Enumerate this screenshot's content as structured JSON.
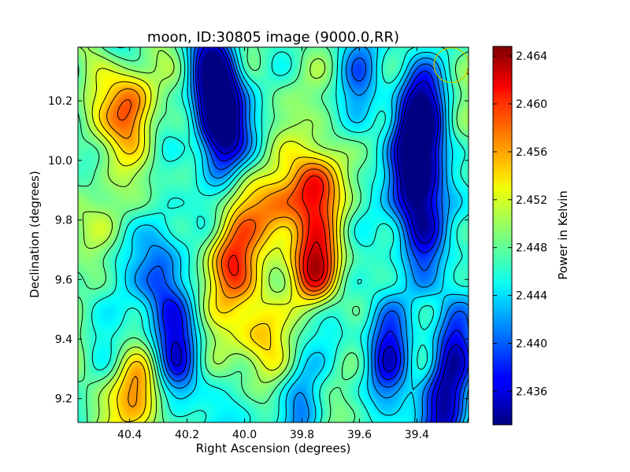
{
  "chart_data": {
    "type": "heatmap",
    "title": "moon, ID:30805 image (9000.0,RR)",
    "xlabel": "Right Ascension (degrees)",
    "ylabel": "Declination (degrees)",
    "xlim": [
      40.58,
      39.22
    ],
    "ylim": [
      9.12,
      10.38
    ],
    "x_ticks": [
      "40.4",
      "40.2",
      "40.0",
      "39.8",
      "39.6",
      "39.4"
    ],
    "x_tick_values": [
      40.4,
      40.2,
      40.0,
      39.8,
      39.6,
      39.4
    ],
    "y_ticks": [
      "9.2",
      "9.4",
      "9.6",
      "9.8",
      "10.0",
      "10.2"
    ],
    "y_tick_values": [
      9.2,
      9.4,
      9.6,
      9.8,
      10.0,
      10.2
    ],
    "colorbar": {
      "label": "Power in Kelvin",
      "range": [
        2.4332,
        2.4648
      ],
      "ticks": [
        "2.436",
        "2.440",
        "2.444",
        "2.448",
        "2.452",
        "2.456",
        "2.460",
        "2.464"
      ],
      "tick_values": [
        2.436,
        2.44,
        2.444,
        2.448,
        2.452,
        2.456,
        2.46,
        2.464
      ],
      "colormap": "jet"
    },
    "features": [
      {
        "ra": 39.75,
        "dec": 9.64,
        "value": 2.4645,
        "kind": "peak"
      },
      {
        "ra": 39.76,
        "dec": 9.9,
        "value": 2.46,
        "kind": "peak"
      },
      {
        "ra": 40.05,
        "dec": 9.65,
        "value": 2.457,
        "kind": "peak"
      },
      {
        "ra": 39.88,
        "dec": 9.82,
        "value": 2.456,
        "kind": "peak"
      },
      {
        "ra": 40.0,
        "dec": 9.87,
        "value": 2.453,
        "kind": "peak"
      },
      {
        "ra": 40.39,
        "dec": 10.2,
        "value": 2.455,
        "kind": "peak"
      },
      {
        "ra": 40.38,
        "dec": 9.22,
        "value": 2.456,
        "kind": "peak"
      },
      {
        "ra": 40.55,
        "dec": 10.15,
        "value": 2.452,
        "kind": "peak"
      },
      {
        "ra": 40.47,
        "dec": 9.8,
        "value": 2.451,
        "kind": "peak"
      },
      {
        "ra": 39.95,
        "dec": 9.42,
        "value": 2.454,
        "kind": "peak"
      },
      {
        "ra": 39.9,
        "dec": 9.3,
        "value": 2.45,
        "kind": "peak"
      },
      {
        "ra": 40.11,
        "dec": 10.27,
        "value": 2.434,
        "kind": "trough"
      },
      {
        "ra": 40.08,
        "dec": 10.12,
        "value": 2.437,
        "kind": "trough"
      },
      {
        "ra": 40.24,
        "dec": 9.35,
        "value": 2.438,
        "kind": "trough"
      },
      {
        "ra": 40.29,
        "dec": 9.65,
        "value": 2.441,
        "kind": "trough"
      },
      {
        "ra": 39.38,
        "dec": 10.14,
        "value": 2.435,
        "kind": "trough"
      },
      {
        "ra": 39.42,
        "dec": 9.95,
        "value": 2.436,
        "kind": "trough"
      },
      {
        "ra": 39.37,
        "dec": 9.75,
        "value": 2.437,
        "kind": "trough"
      },
      {
        "ra": 39.5,
        "dec": 9.35,
        "value": 2.437,
        "kind": "trough"
      },
      {
        "ra": 39.27,
        "dec": 9.4,
        "value": 2.438,
        "kind": "trough"
      },
      {
        "ra": 39.3,
        "dec": 9.15,
        "value": 2.438,
        "kind": "trough"
      },
      {
        "ra": 39.6,
        "dec": 10.25,
        "value": 2.441,
        "kind": "trough"
      },
      {
        "ra": 39.8,
        "dec": 9.15,
        "value": 2.44,
        "kind": "trough"
      }
    ],
    "beam_circle": {
      "ra": 39.28,
      "dec": 10.32,
      "color": "#c8c800"
    },
    "contours": true,
    "grid": false
  }
}
